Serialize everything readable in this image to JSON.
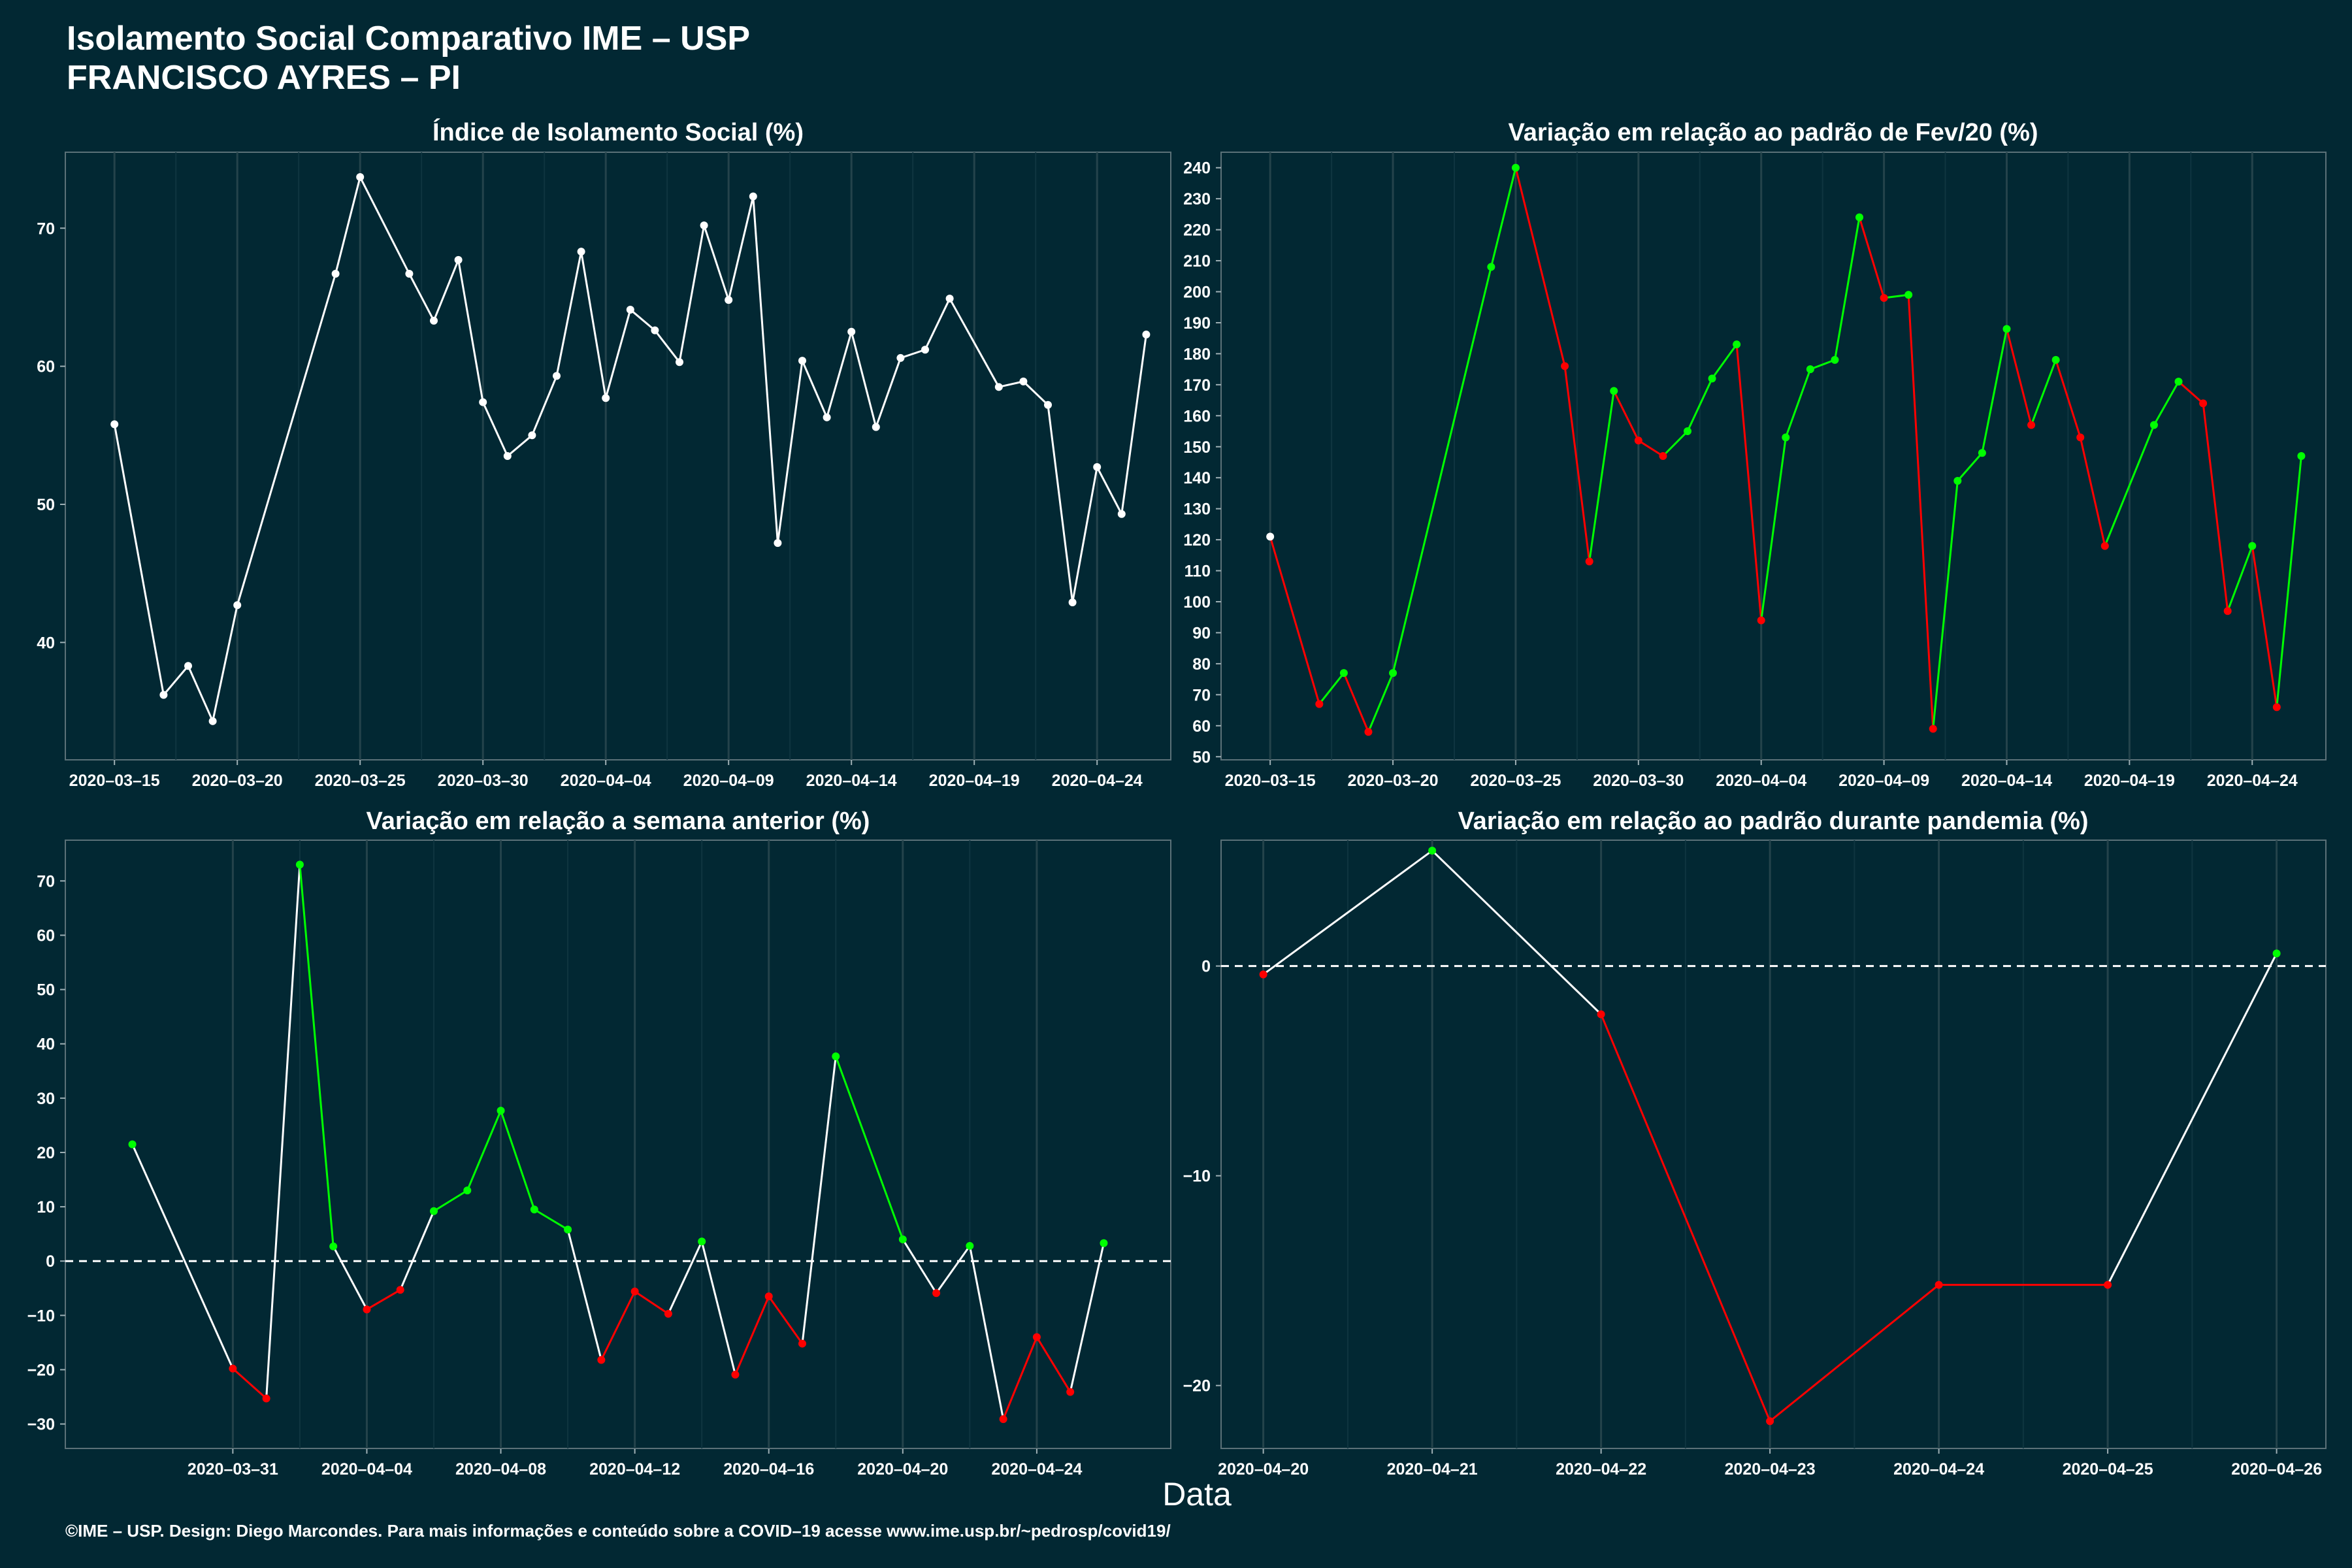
{
  "header": {
    "title": "Isolamento Social Comparativo IME – USP",
    "subtitle": "FRANCISCO AYRES – PI"
  },
  "xlabel": "Data",
  "caption": "©IME – USP. Design: Diego Marcondes. Para mais informações e conteúdo sobre a COVID–19 acesse www.ime.usp.br/~pedrosp/covid19/",
  "colors": {
    "background": "#022833",
    "panel": "#022833",
    "up": "#00ff00",
    "down": "#ff0000",
    "neutral": "#ffffff"
  },
  "chart_data": [
    {
      "type": "line",
      "title": "Índice de Isolamento Social (%)",
      "color_mode": "white",
      "xdomain": [
        "2020-03-13",
        "2020-04-27"
      ],
      "ylim": [
        31.5,
        75.5
      ],
      "yticks": [
        40,
        50,
        60,
        70
      ],
      "ytick_labels": [
        "40",
        "50",
        "60",
        "70"
      ],
      "xticks": [
        "2020-03-15",
        "2020-03-20",
        "2020-03-25",
        "2020-03-30",
        "2020-04-04",
        "2020-04-09",
        "2020-04-14",
        "2020-04-19",
        "2020-04-24"
      ],
      "xtick_labels": [
        "2020–03–15",
        "2020–03–20",
        "2020–03–25",
        "2020–03–30",
        "2020–04–04",
        "2020–04–09",
        "2020–04–14",
        "2020–04–19",
        "2020–04–24"
      ],
      "zero_line": false,
      "series": [
        {
          "x": [
            "2020-03-15",
            "2020-03-17",
            "2020-03-18",
            "2020-03-19",
            "2020-03-20",
            "2020-03-24",
            "2020-03-25",
            "2020-03-27",
            "2020-03-28",
            "2020-03-29",
            "2020-03-30",
            "2020-03-31",
            "2020-04-01",
            "2020-04-02",
            "2020-04-03",
            "2020-04-04",
            "2020-04-05",
            "2020-04-06",
            "2020-04-07",
            "2020-04-08",
            "2020-04-09",
            "2020-04-10",
            "2020-04-11",
            "2020-04-12",
            "2020-04-13",
            "2020-04-14",
            "2020-04-15",
            "2020-04-16",
            "2020-04-17",
            "2020-04-18",
            "2020-04-20",
            "2020-04-21",
            "2020-04-22",
            "2020-04-23",
            "2020-04-24",
            "2020-04-25",
            "2020-04-26"
          ],
          "y": [
            55.8,
            36.2,
            38.3,
            34.3,
            42.7,
            66.7,
            73.7,
            66.7,
            63.3,
            67.7,
            57.4,
            53.5,
            55.0,
            59.3,
            68.3,
            57.7,
            64.1,
            62.6,
            60.3,
            70.2,
            64.8,
            72.3,
            47.2,
            60.4,
            56.3,
            62.5,
            55.6,
            60.6,
            61.2,
            64.9,
            58.5,
            58.9,
            57.2,
            42.9,
            52.7,
            49.3,
            62.3
          ]
        }
      ]
    },
    {
      "type": "line",
      "title": "Variação em relação ao padrão de Fev/20 (%)",
      "color_mode": "trend",
      "xdomain": [
        "2020-03-13",
        "2020-04-27"
      ],
      "ylim": [
        49,
        245
      ],
      "yticks": [
        50,
        60,
        70,
        80,
        90,
        100,
        110,
        120,
        130,
        140,
        150,
        160,
        170,
        180,
        190,
        200,
        210,
        220,
        230,
        240
      ],
      "ytick_labels": [
        "50",
        "60",
        "70",
        "80",
        "90",
        "100",
        "110",
        "120",
        "130",
        "140",
        "150",
        "160",
        "170",
        "180",
        "190",
        "200",
        "210",
        "220",
        "230",
        "240"
      ],
      "xticks": [
        "2020-03-15",
        "2020-03-20",
        "2020-03-25",
        "2020-03-30",
        "2020-04-04",
        "2020-04-09",
        "2020-04-14",
        "2020-04-19",
        "2020-04-24"
      ],
      "xtick_labels": [
        "2020–03–15",
        "2020–03–20",
        "2020–03–25",
        "2020–03–30",
        "2020–04–04",
        "2020–04–09",
        "2020–04–14",
        "2020–04–19",
        "2020–04–24"
      ],
      "zero_line": false,
      "series": [
        {
          "x": [
            "2020-03-15",
            "2020-03-17",
            "2020-03-18",
            "2020-03-19",
            "2020-03-20",
            "2020-03-24",
            "2020-03-25",
            "2020-03-27",
            "2020-03-28",
            "2020-03-29",
            "2020-03-30",
            "2020-03-31",
            "2020-04-01",
            "2020-04-02",
            "2020-04-03",
            "2020-04-04",
            "2020-04-05",
            "2020-04-06",
            "2020-04-07",
            "2020-04-08",
            "2020-04-09",
            "2020-04-10",
            "2020-04-11",
            "2020-04-12",
            "2020-04-13",
            "2020-04-14",
            "2020-04-15",
            "2020-04-16",
            "2020-04-17",
            "2020-04-18",
            "2020-04-20",
            "2020-04-21",
            "2020-04-22",
            "2020-04-23",
            "2020-04-24",
            "2020-04-25",
            "2020-04-26"
          ],
          "y": [
            121,
            67,
            77,
            58,
            77,
            208,
            240,
            176,
            113,
            168,
            152,
            147,
            155,
            172,
            183,
            94,
            153,
            175,
            178,
            224,
            198,
            199,
            59,
            139,
            148,
            188,
            157,
            178,
            153,
            118,
            157,
            171,
            164,
            97,
            118,
            66,
            147
          ]
        }
      ]
    },
    {
      "type": "line",
      "title": "Variação em relação a semana anterior (%)",
      "color_mode": "sign",
      "xdomain": [
        "2020-03-26",
        "2020-04-28"
      ],
      "ylim": [
        -34.5,
        77.5
      ],
      "yticks": [
        -30,
        -20,
        -10,
        0,
        10,
        20,
        30,
        40,
        50,
        60,
        70
      ],
      "ytick_labels": [
        "−30",
        "−20",
        "−10",
        "0",
        "10",
        "20",
        "30",
        "40",
        "50",
        "60",
        "70"
      ],
      "xticks": [
        "2020-03-31",
        "2020-04-04",
        "2020-04-08",
        "2020-04-12",
        "2020-04-16",
        "2020-04-20",
        "2020-04-24"
      ],
      "xtick_labels": [
        "2020–03–31",
        "2020–04–04",
        "2020–04–08",
        "2020–04–12",
        "2020–04–16",
        "2020–04–20",
        "2020–04–24"
      ],
      "zero_line": true,
      "series": [
        {
          "x": [
            "2020-03-28",
            "2020-03-31",
            "2020-04-01",
            "2020-04-02",
            "2020-04-03",
            "2020-04-04",
            "2020-04-05",
            "2020-04-06",
            "2020-04-07",
            "2020-04-08",
            "2020-04-09",
            "2020-04-10",
            "2020-04-11",
            "2020-04-12",
            "2020-04-13",
            "2020-04-14",
            "2020-04-15",
            "2020-04-16",
            "2020-04-17",
            "2020-04-18",
            "2020-04-20",
            "2020-04-21",
            "2020-04-22",
            "2020-04-23",
            "2020-04-24",
            "2020-04-25",
            "2020-04-26"
          ],
          "y": [
            21.5,
            -19.8,
            -25.3,
            73.0,
            2.7,
            -8.9,
            -5.3,
            9.2,
            13.0,
            27.7,
            9.5,
            5.8,
            -18.2,
            -5.6,
            -9.7,
            3.6,
            -20.9,
            -6.5,
            -15.2,
            37.7,
            4.0,
            -5.9,
            2.8,
            -29.1,
            -14.0,
            -24.1,
            3.3
          ]
        }
      ]
    },
    {
      "type": "line",
      "title": "Variação em relação ao padrão durante pandemia (%)",
      "color_mode": "sign",
      "xdomain": [
        "2020-04-19T18:00",
        "2020-04-26T07:00"
      ],
      "ylim": [
        -23,
        6
      ],
      "yticks": [
        -20,
        -10,
        0
      ],
      "ytick_labels": [
        "−20",
        "−10",
        "0"
      ],
      "xticks": [
        "2020-04-20",
        "2020-04-21",
        "2020-04-22",
        "2020-04-23",
        "2020-04-24",
        "2020-04-25",
        "2020-04-26"
      ],
      "xtick_labels": [
        "2020–04–20",
        "2020–04–21",
        "2020–04–22",
        "2020–04–23",
        "2020–04–24",
        "2020–04–25",
        "2020–04–26"
      ],
      "zero_line": true,
      "series": [
        {
          "x": [
            "2020-04-20",
            "2020-04-21",
            "2020-04-22",
            "2020-04-23",
            "2020-04-24",
            "2020-04-25",
            "2020-04-26"
          ],
          "y": [
            -0.4,
            5.5,
            -2.3,
            -21.7,
            -15.2,
            -15.2,
            0.6
          ]
        }
      ]
    }
  ]
}
